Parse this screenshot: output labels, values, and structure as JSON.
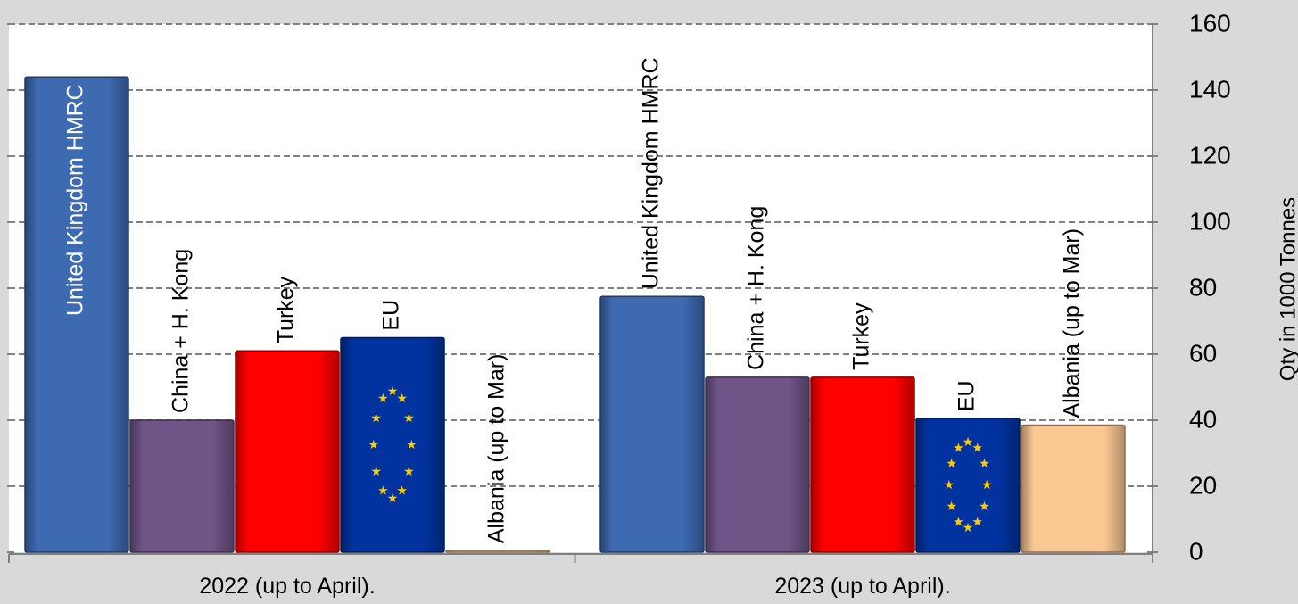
{
  "chart_data": {
    "type": "bar",
    "title": "",
    "xlabel": "",
    "ylabel": "Qty in 1000 Tonnes",
    "ylim": [
      0,
      160
    ],
    "yticks": [
      0,
      20,
      40,
      60,
      80,
      100,
      120,
      140,
      160
    ],
    "y_axis_position": "right",
    "grid": true,
    "grid_style": "dashed",
    "legend": "none",
    "colors": {
      "background": "#d9d9d9",
      "plot_background": "#ffffff",
      "grid": "#808080",
      "uk": "#3e6ab2",
      "china": "#6f5487",
      "turkey": "#ff0000",
      "eu": "#0033a0",
      "eu_star": "#ffcc00",
      "albania": "#fbc894"
    },
    "groups": [
      {
        "label": "2022 (up to April).",
        "bars": [
          {
            "name": "United Kingdom HMRC",
            "value": 144,
            "color_key": "uk",
            "label_inside": true
          },
          {
            "name": "China + H. Kong",
            "value": 40,
            "color_key": "china"
          },
          {
            "name": "Turkey",
            "value": 61,
            "color_key": "turkey"
          },
          {
            "name": "EU",
            "value": 65,
            "color_key": "eu",
            "pattern": "eu-flag-stars"
          },
          {
            "name": "Albania (up to Mar)",
            "value": 0.5,
            "color_key": "albania"
          }
        ]
      },
      {
        "label": "2023 (up to April).",
        "bars": [
          {
            "name": "United Kingdom HMRC",
            "value": 77.5,
            "color_key": "uk"
          },
          {
            "name": "China + H. Kong",
            "value": 53,
            "color_key": "china"
          },
          {
            "name": "Turkey",
            "value": 53,
            "color_key": "turkey"
          },
          {
            "name": "EU",
            "value": 40.5,
            "color_key": "eu",
            "pattern": "eu-flag-stars"
          },
          {
            "name": "Albania (up to Mar)",
            "value": 38.5,
            "color_key": "albania"
          }
        ]
      }
    ]
  }
}
